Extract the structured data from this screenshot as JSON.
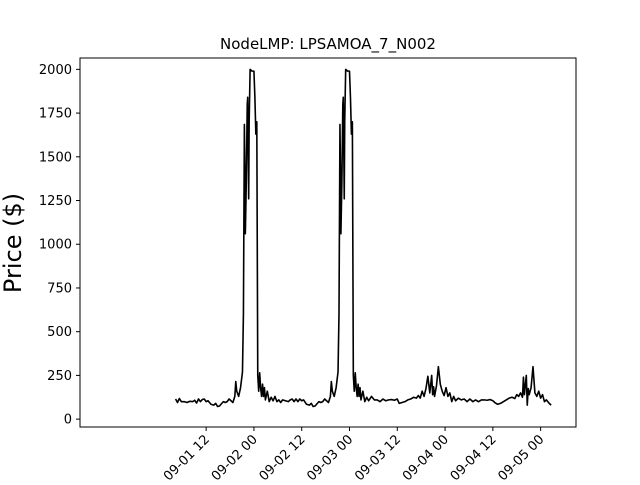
{
  "chart_data": {
    "type": "line",
    "title": "NodeLMP: LPSAMOA_7_N002",
    "ylabel": "Price ($)",
    "xlabel": "",
    "ylim": [
      -45,
      2065
    ],
    "xlim": [
      -0.82,
      4.37
    ],
    "x_axis_kind": "time (days from 09-01 00)",
    "yticks": [
      0,
      250,
      500,
      750,
      1000,
      1250,
      1500,
      1750,
      2000
    ],
    "xticks": [
      {
        "value": 0.5,
        "label": "09-01 12"
      },
      {
        "value": 1.0,
        "label": "09-02 00"
      },
      {
        "value": 1.5,
        "label": "09-02 12"
      },
      {
        "value": 2.0,
        "label": "09-03 00"
      },
      {
        "value": 2.5,
        "label": "09-03 12"
      },
      {
        "value": 3.0,
        "label": "09-04 00"
      },
      {
        "value": 3.5,
        "label": "09-04 12"
      },
      {
        "value": 4.0,
        "label": "09-05 00"
      }
    ],
    "grid": false,
    "legend": "none",
    "series": [
      {
        "color": "#000000",
        "points": [
          [
            0.18,
            115
          ],
          [
            0.2,
            95
          ],
          [
            0.22,
            118
          ],
          [
            0.24,
            100
          ],
          [
            0.27,
            100
          ],
          [
            0.3,
            95
          ],
          [
            0.33,
            102
          ],
          [
            0.36,
            100
          ],
          [
            0.38,
            108
          ],
          [
            0.4,
            92
          ],
          [
            0.42,
            115
          ],
          [
            0.44,
            100
          ],
          [
            0.46,
            112
          ],
          [
            0.48,
            115
          ],
          [
            0.5,
            100
          ],
          [
            0.52,
            105
          ],
          [
            0.55,
            85
          ],
          [
            0.58,
            80
          ],
          [
            0.6,
            90
          ],
          [
            0.62,
            72
          ],
          [
            0.64,
            75
          ],
          [
            0.66,
            88
          ],
          [
            0.68,
            100
          ],
          [
            0.7,
            95
          ],
          [
            0.72,
            100
          ],
          [
            0.74,
            115
          ],
          [
            0.76,
            105
          ],
          [
            0.78,
            95
          ],
          [
            0.8,
            130
          ],
          [
            0.81,
            215
          ],
          [
            0.82,
            160
          ],
          [
            0.84,
            130
          ],
          [
            0.86,
            180
          ],
          [
            0.88,
            270
          ],
          [
            0.89,
            600
          ],
          [
            0.9,
            1685
          ],
          [
            0.905,
            1450
          ],
          [
            0.91,
            1060
          ],
          [
            0.92,
            1350
          ],
          [
            0.93,
            1800
          ],
          [
            0.935,
            1840
          ],
          [
            0.94,
            1550
          ],
          [
            0.945,
            1260
          ],
          [
            0.95,
            1700
          ],
          [
            0.96,
            2000
          ],
          [
            0.98,
            1990
          ],
          [
            1.0,
            1990
          ],
          [
            1.01,
            1840
          ],
          [
            1.02,
            1630
          ],
          [
            1.03,
            1700
          ],
          [
            1.04,
            250
          ],
          [
            1.05,
            160
          ],
          [
            1.06,
            265
          ],
          [
            1.07,
            180
          ],
          [
            1.08,
            130
          ],
          [
            1.09,
            200
          ],
          [
            1.1,
            130
          ],
          [
            1.11,
            180
          ],
          [
            1.12,
            110
          ],
          [
            1.14,
            160
          ],
          [
            1.16,
            100
          ],
          [
            1.18,
            125
          ],
          [
            1.2,
            105
          ],
          [
            1.22,
            130
          ],
          [
            1.24,
            100
          ],
          [
            1.26,
            110
          ],
          [
            1.28,
            95
          ],
          [
            1.3,
            110
          ],
          [
            1.33,
            105
          ],
          [
            1.36,
            100
          ],
          [
            1.38,
            110
          ],
          [
            1.4,
            115
          ],
          [
            1.42,
            100
          ],
          [
            1.44,
            115
          ],
          [
            1.46,
            100
          ],
          [
            1.48,
            115
          ],
          [
            1.5,
            105
          ],
          [
            1.52,
            110
          ],
          [
            1.55,
            85
          ],
          [
            1.58,
            80
          ],
          [
            1.6,
            90
          ],
          [
            1.62,
            72
          ],
          [
            1.64,
            75
          ],
          [
            1.66,
            88
          ],
          [
            1.68,
            100
          ],
          [
            1.7,
            95
          ],
          [
            1.72,
            100
          ],
          [
            1.74,
            115
          ],
          [
            1.76,
            105
          ],
          [
            1.78,
            95
          ],
          [
            1.8,
            130
          ],
          [
            1.81,
            215
          ],
          [
            1.82,
            160
          ],
          [
            1.84,
            130
          ],
          [
            1.86,
            180
          ],
          [
            1.88,
            270
          ],
          [
            1.89,
            600
          ],
          [
            1.9,
            1685
          ],
          [
            1.905,
            1450
          ],
          [
            1.91,
            1060
          ],
          [
            1.92,
            1350
          ],
          [
            1.93,
            1800
          ],
          [
            1.935,
            1840
          ],
          [
            1.94,
            1550
          ],
          [
            1.945,
            1260
          ],
          [
            1.95,
            1700
          ],
          [
            1.96,
            2000
          ],
          [
            1.98,
            1990
          ],
          [
            2.0,
            1990
          ],
          [
            2.01,
            1840
          ],
          [
            2.02,
            1630
          ],
          [
            2.03,
            1700
          ],
          [
            2.04,
            250
          ],
          [
            2.05,
            160
          ],
          [
            2.06,
            265
          ],
          [
            2.07,
            180
          ],
          [
            2.08,
            130
          ],
          [
            2.09,
            200
          ],
          [
            2.1,
            130
          ],
          [
            2.11,
            180
          ],
          [
            2.12,
            110
          ],
          [
            2.14,
            160
          ],
          [
            2.16,
            100
          ],
          [
            2.18,
            125
          ],
          [
            2.2,
            105
          ],
          [
            2.23,
            130
          ],
          [
            2.26,
            110
          ],
          [
            2.29,
            110
          ],
          [
            2.32,
            100
          ],
          [
            2.35,
            115
          ],
          [
            2.38,
            105
          ],
          [
            2.41,
            110
          ],
          [
            2.44,
            112
          ],
          [
            2.47,
            108
          ],
          [
            2.5,
            115
          ],
          [
            2.52,
            90
          ],
          [
            2.55,
            95
          ],
          [
            2.58,
            100
          ],
          [
            2.61,
            110
          ],
          [
            2.64,
            115
          ],
          [
            2.67,
            125
          ],
          [
            2.7,
            120
          ],
          [
            2.72,
            135
          ],
          [
            2.74,
            120
          ],
          [
            2.76,
            160
          ],
          [
            2.78,
            130
          ],
          [
            2.8,
            175
          ],
          [
            2.82,
            245
          ],
          [
            2.84,
            150
          ],
          [
            2.86,
            250
          ],
          [
            2.87,
            140
          ],
          [
            2.88,
            185
          ],
          [
            2.89,
            130
          ],
          [
            2.91,
            190
          ],
          [
            2.93,
            300
          ],
          [
            2.95,
            200
          ],
          [
            2.97,
            160
          ],
          [
            2.99,
            135
          ],
          [
            3.01,
            180
          ],
          [
            3.03,
            130
          ],
          [
            3.05,
            150
          ],
          [
            3.07,
            100
          ],
          [
            3.09,
            130
          ],
          [
            3.11,
            105
          ],
          [
            3.14,
            120
          ],
          [
            3.17,
            110
          ],
          [
            3.2,
            115
          ],
          [
            3.23,
            100
          ],
          [
            3.26,
            115
          ],
          [
            3.29,
            100
          ],
          [
            3.32,
            110
          ],
          [
            3.35,
            100
          ],
          [
            3.38,
            110
          ],
          [
            3.41,
            110
          ],
          [
            3.44,
            108
          ],
          [
            3.47,
            112
          ],
          [
            3.5,
            105
          ],
          [
            3.52,
            95
          ],
          [
            3.55,
            85
          ],
          [
            3.58,
            90
          ],
          [
            3.61,
            100
          ],
          [
            3.64,
            110
          ],
          [
            3.67,
            120
          ],
          [
            3.7,
            125
          ],
          [
            3.73,
            118
          ],
          [
            3.75,
            140
          ],
          [
            3.77,
            130
          ],
          [
            3.79,
            150
          ],
          [
            3.81,
            125
          ],
          [
            3.82,
            240
          ],
          [
            3.83,
            140
          ],
          [
            3.85,
            250
          ],
          [
            3.86,
            80
          ],
          [
            3.87,
            175
          ],
          [
            3.88,
            140
          ],
          [
            3.9,
            180
          ],
          [
            3.92,
            300
          ],
          [
            3.94,
            150
          ],
          [
            3.96,
            130
          ],
          [
            3.98,
            160
          ],
          [
            4.0,
            120
          ],
          [
            4.02,
            140
          ],
          [
            4.04,
            100
          ],
          [
            4.06,
            110
          ],
          [
            4.09,
            90
          ],
          [
            4.11,
            80
          ]
        ]
      }
    ]
  }
}
